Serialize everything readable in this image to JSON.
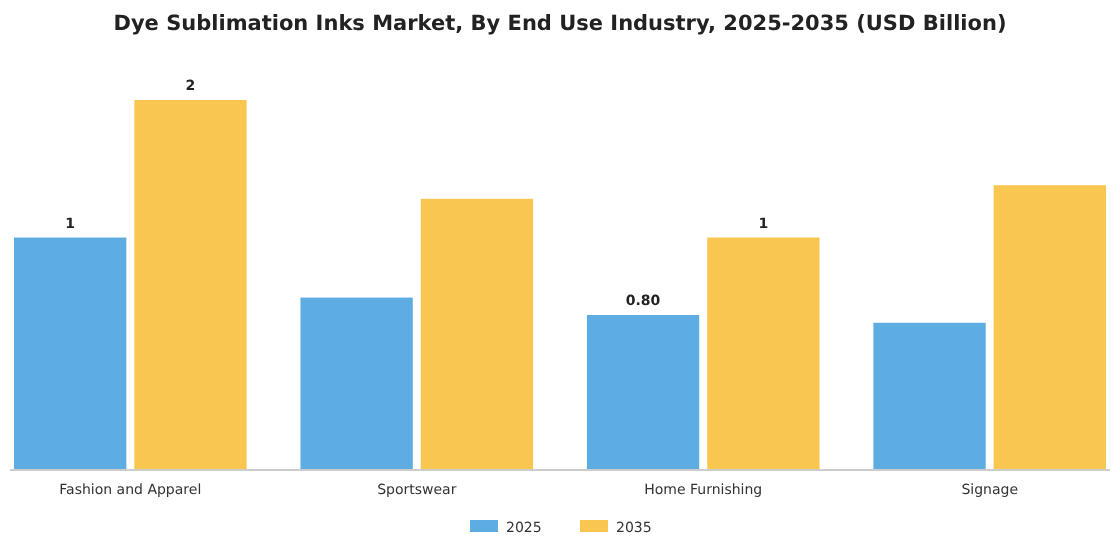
{
  "chart_data": {
    "type": "bar",
    "title": "Dye Sublimation Inks Market, By End Use Industry, 2025-2035 (USD Billion)",
    "categories": [
      "Fashion and Apparel",
      "Sportswear",
      "Home Furnishing",
      "Signage"
    ],
    "series": [
      {
        "name": "2025",
        "color": "#5dade2",
        "values": [
          1.2,
          0.89,
          0.8,
          0.76
        ],
        "value_labels": [
          "1",
          null,
          "0.80",
          null
        ]
      },
      {
        "name": "2035",
        "color": "#f9c74f",
        "values": [
          1.91,
          1.4,
          1.2,
          1.47
        ],
        "value_labels": [
          "2",
          null,
          "1",
          null
        ]
      }
    ],
    "legend": "bottom"
  }
}
